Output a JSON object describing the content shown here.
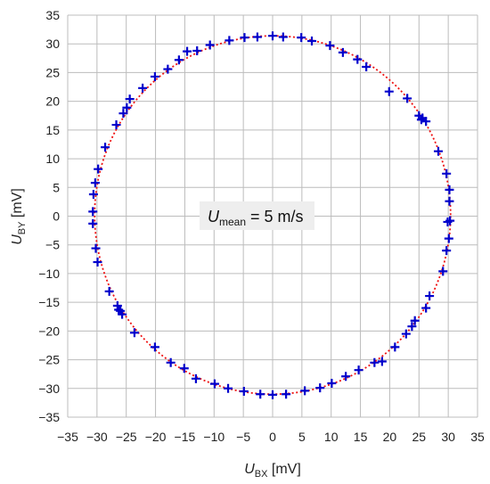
{
  "chart_data": {
    "type": "scatter",
    "xlim": [
      -35,
      35
    ],
    "ylim": [
      -35,
      35
    ],
    "xticks": [
      -35,
      -30,
      -25,
      -20,
      -15,
      -10,
      -5,
      0,
      5,
      10,
      15,
      20,
      25,
      30,
      35
    ],
    "yticks": [
      -35,
      -30,
      -25,
      -20,
      -15,
      -10,
      -5,
      0,
      5,
      10,
      15,
      20,
      25,
      30,
      35
    ],
    "grid": true,
    "xlabel": {
      "main": "U",
      "sub": "BX",
      "unit": " [mV]"
    },
    "ylabel": {
      "main": "U",
      "sub": "BY",
      "unit": " [mV]"
    },
    "annotation": {
      "main": "U",
      "sub": "mean",
      "rest": " = 5 m/s"
    },
    "series": [
      {
        "marker": "plus",
        "color": "#0000cc",
        "points": [
          [
            0,
            31.4
          ],
          [
            1.8,
            31.2
          ],
          [
            4.9,
            31.1
          ],
          [
            6.7,
            30.5
          ],
          [
            9.8,
            29.7
          ],
          [
            12,
            28.5
          ],
          [
            14.5,
            27.3
          ],
          [
            16,
            26
          ],
          [
            19.9,
            21.7
          ],
          [
            23,
            20.5
          ],
          [
            25,
            17.5
          ],
          [
            25.4,
            16.8
          ],
          [
            25.6,
            17.1
          ],
          [
            26.2,
            16.5
          ],
          [
            28.3,
            11.3
          ],
          [
            29.7,
            7.4
          ],
          [
            30.2,
            4.6
          ],
          [
            30.2,
            2.6
          ],
          [
            30.3,
            -0.8
          ],
          [
            29.9,
            -1
          ],
          [
            30.1,
            -3.9
          ],
          [
            29.7,
            -6
          ],
          [
            29.1,
            -9.6
          ],
          [
            26.8,
            -13.9
          ],
          [
            26.2,
            -16
          ],
          [
            24.3,
            -18.2
          ],
          [
            23.8,
            -19.2
          ],
          [
            22.8,
            -20.5
          ],
          [
            20.9,
            -22.8
          ],
          [
            18.7,
            -25.3
          ],
          [
            17.4,
            -25.5
          ],
          [
            14.7,
            -26.8
          ],
          [
            12.5,
            -27.9
          ],
          [
            10.1,
            -29.1
          ],
          [
            8.1,
            -29.9
          ],
          [
            5.5,
            -30.4
          ],
          [
            2.3,
            -31
          ],
          [
            0,
            -31.1
          ],
          [
            -2.1,
            -31
          ],
          [
            -4.9,
            -30.5
          ],
          [
            -7.6,
            -30
          ],
          [
            -9.9,
            -29.2
          ],
          [
            -13.1,
            -28.3
          ],
          [
            -15.1,
            -26.5
          ],
          [
            -17.4,
            -25.5
          ],
          [
            -20.1,
            -22.8
          ],
          [
            -23.6,
            -20.3
          ],
          [
            -25.7,
            -17.1
          ],
          [
            -26,
            -16.5
          ],
          [
            -26.3,
            -16.3
          ],
          [
            -26.5,
            -15.6
          ],
          [
            -27.9,
            -13.1
          ],
          [
            -29.9,
            -8
          ],
          [
            -30.2,
            -5.6
          ],
          [
            -30.7,
            -1.3
          ],
          [
            -30.7,
            0.8
          ],
          [
            -30.6,
            3.8
          ],
          [
            -30.3,
            5.8
          ],
          [
            -29.8,
            8.2
          ],
          [
            -28.6,
            12
          ],
          [
            -26.7,
            15.9
          ],
          [
            -25.5,
            17.9
          ],
          [
            -24.9,
            18.9
          ],
          [
            -24.4,
            20.4
          ],
          [
            -22.2,
            22.3
          ],
          [
            -20.1,
            24.3
          ],
          [
            -17.9,
            25.6
          ],
          [
            -16,
            27.2
          ],
          [
            -14.6,
            28.7
          ],
          [
            -12.9,
            28.8
          ],
          [
            -10.7,
            29.8
          ],
          [
            -7.4,
            30.6
          ],
          [
            -4.8,
            31.1
          ],
          [
            -2.6,
            31.2
          ]
        ]
      }
    ],
    "fit": {
      "type": "ellipse",
      "center": [
        0,
        0.2
      ],
      "rx": 30.4,
      "ry": 31.2,
      "color": "#ee1111",
      "style": "dotted"
    }
  }
}
